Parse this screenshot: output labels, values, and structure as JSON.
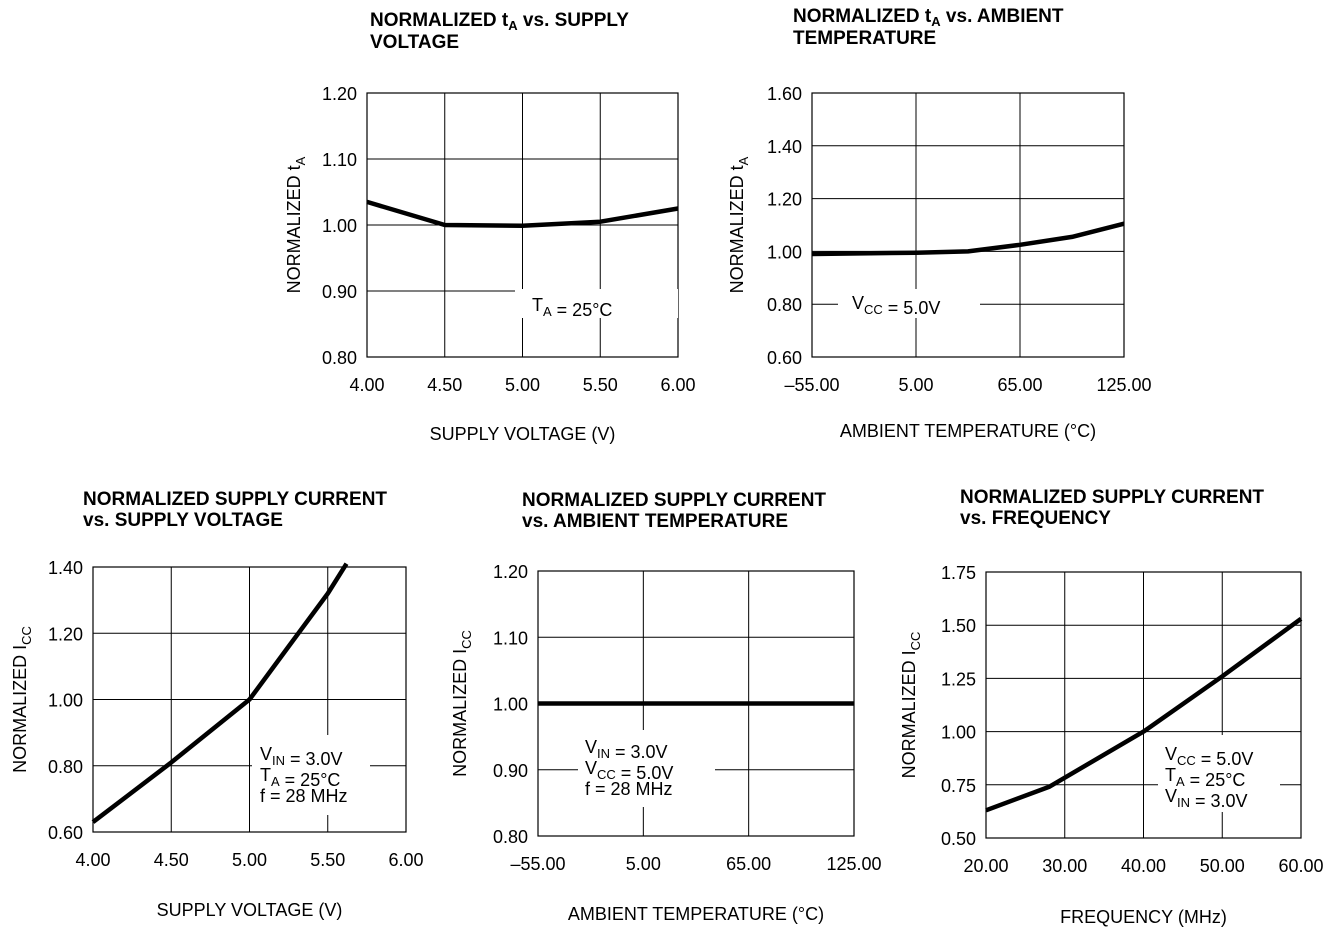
{
  "chart_data": [
    {
      "type": "line",
      "title": {
        "prefix": "NORMALIZED t",
        "sub": "A",
        "rest": " vs. SUPPLY",
        "line2": "VOLTAGE"
      },
      "xlabel": "SUPPLY  VOLTAGE (V)",
      "ylabel": {
        "prefix": "NORMALIZED t",
        "sub": "A"
      },
      "x_ticks": [
        "4.00",
        "4.50",
        "5.00",
        "5.50",
        "6.00"
      ],
      "y_ticks": [
        "0.80",
        "0.90",
        "1.00",
        "1.10",
        "1.20"
      ],
      "xlim": [
        4.0,
        6.0
      ],
      "ylim": [
        0.8,
        1.2
      ],
      "grid": true,
      "series": [
        {
          "x": [
            4.0,
            4.5,
            5.0,
            5.5,
            6.0
          ],
          "y": [
            1.035,
            1.0,
            0.999,
            1.005,
            1.025
          ]
        }
      ],
      "annotation": [
        [
          {
            "t": "T"
          },
          {
            "t": "A",
            "sub": true
          },
          {
            "t": " = 25°C"
          }
        ]
      ]
    },
    {
      "type": "line",
      "title": {
        "prefix": "NORMALIZED t",
        "sub": "A",
        "rest": " vs. AMBIENT",
        "line2": "TEMPERATURE"
      },
      "xlabel": "AMBIENT  TEMPERATURE (°C)",
      "ylabel": {
        "prefix": "NORMALIZED t",
        "sub": "A"
      },
      "x_ticks": [
        "–55.00",
        "5.00",
        "65.00",
        "125.00"
      ],
      "y_ticks": [
        "0.60",
        "0.80",
        "1.00",
        "1.20",
        "1.40",
        "1.60"
      ],
      "xlim": [
        -55,
        125
      ],
      "ylim": [
        0.6,
        1.6
      ],
      "grid": true,
      "series": [
        {
          "x": [
            -55,
            5,
            35,
            65,
            95,
            125
          ],
          "y": [
            0.99,
            0.995,
            1.0,
            1.025,
            1.055,
            1.105
          ]
        }
      ],
      "annotation": [
        [
          {
            "t": "V"
          },
          {
            "t": "CC",
            "sub": true
          },
          {
            "t": " = 5.0V"
          }
        ]
      ]
    },
    {
      "type": "line",
      "title": {
        "prefix": "NORMALIZED SUPPLY CURRENT",
        "line2": "vs. SUPPLY VOLTAGE"
      },
      "xlabel": "SUPPLY  VOLTAGE (V)",
      "ylabel": {
        "prefix": "NORMALIZED I",
        "sub": "CC"
      },
      "x_ticks": [
        "4.00",
        "4.50",
        "5.00",
        "5.50",
        "6.00"
      ],
      "y_ticks": [
        "0.60",
        "0.80",
        "1.00",
        "1.20",
        "1.40"
      ],
      "xlim": [
        4.0,
        6.0
      ],
      "ylim": [
        0.6,
        1.4
      ],
      "grid": true,
      "series": [
        {
          "x": [
            4.0,
            4.5,
            5.0,
            5.25,
            5.5,
            5.62
          ],
          "y": [
            0.63,
            0.81,
            1.0,
            1.16,
            1.32,
            1.41
          ]
        }
      ],
      "annotation": [
        [
          {
            "t": "V"
          },
          {
            "t": "IN",
            "sub": true
          },
          {
            "t": " = 3.0V"
          }
        ],
        [
          {
            "t": "T"
          },
          {
            "t": "A",
            "sub": true
          },
          {
            "t": " = 25°C"
          }
        ],
        [
          {
            "t": "f = 28 MHz"
          }
        ]
      ]
    },
    {
      "type": "line",
      "title": {
        "prefix": "NORMALIZED SUPPLY CURRENT",
        "line2": "vs. AMBIENT TEMPERATURE"
      },
      "xlabel": "AMBIENT  TEMPERATURE (°C)",
      "ylabel": {
        "prefix": "NORMALIZED I",
        "sub": "CC"
      },
      "x_ticks": [
        "–55.00",
        "5.00",
        "65.00",
        "125.00"
      ],
      "y_ticks": [
        "0.80",
        "0.90",
        "1.00",
        "1.10",
        "1.20"
      ],
      "xlim": [
        -55,
        125
      ],
      "ylim": [
        0.8,
        1.2
      ],
      "grid": true,
      "series": [
        {
          "x": [
            -55,
            125
          ],
          "y": [
            1.0,
            1.0
          ]
        }
      ],
      "annotation": [
        [
          {
            "t": "V"
          },
          {
            "t": "IN",
            "sub": true
          },
          {
            "t": " = 3.0V"
          }
        ],
        [
          {
            "t": "V"
          },
          {
            "t": "CC",
            "sub": true
          },
          {
            "t": " = 5.0V"
          }
        ],
        [
          {
            "t": "f = 28 MHz"
          }
        ]
      ]
    },
    {
      "type": "line",
      "title": {
        "prefix": "NORMALIZED SUPPLY CURRENT",
        "line2": "vs. FREQUENCY"
      },
      "xlabel": "FREQUENCY (MHz)",
      "ylabel": {
        "prefix": "NORMALIZED I",
        "sub": "CC"
      },
      "x_ticks": [
        "20.00",
        "30.00",
        "40.00",
        "50.00",
        "60.00"
      ],
      "y_ticks": [
        "0.50",
        "0.75",
        "1.00",
        "1.25",
        "1.50",
        "1.75"
      ],
      "xlim": [
        20,
        60
      ],
      "ylim": [
        0.5,
        1.75
      ],
      "grid": true,
      "series": [
        {
          "x": [
            20,
            28,
            40,
            50,
            60
          ],
          "y": [
            0.63,
            0.74,
            1.0,
            1.26,
            1.53
          ]
        }
      ],
      "annotation": [
        [
          {
            "t": "V"
          },
          {
            "t": "CC",
            "sub": true
          },
          {
            "t": " = 5.0V"
          }
        ],
        [
          {
            "t": "T"
          },
          {
            "t": "A",
            "sub": true
          },
          {
            "t": " = 25°C"
          }
        ],
        [
          {
            "t": "V"
          },
          {
            "t": "IN",
            "sub": true
          },
          {
            "t": " = 3.0V"
          }
        ]
      ]
    }
  ]
}
